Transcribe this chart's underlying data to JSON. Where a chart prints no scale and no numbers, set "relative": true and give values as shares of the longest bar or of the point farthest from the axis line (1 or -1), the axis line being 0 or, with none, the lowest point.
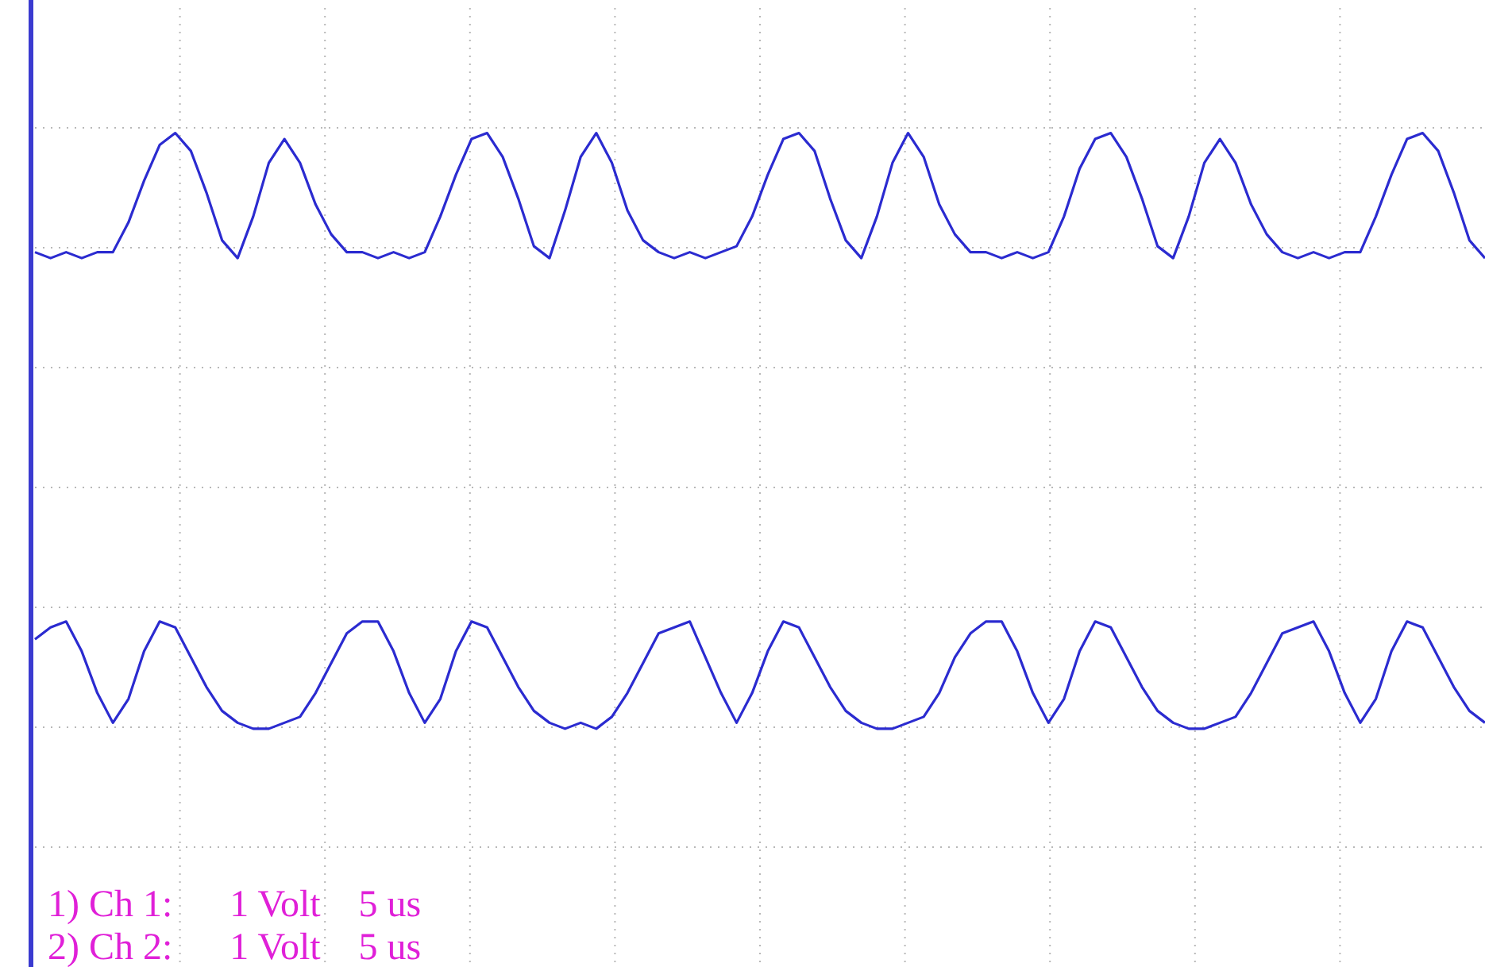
{
  "chart_data": {
    "type": "line",
    "relative": true,
    "grid": true,
    "legend": false,
    "marker": "none",
    "line_style": "solid",
    "categories": [
      null,
      null,
      null,
      null,
      null,
      null,
      null,
      null,
      null,
      null,
      null,
      null,
      null,
      null,
      null,
      null,
      null,
      null,
      null,
      null,
      null,
      null,
      null,
      null,
      null,
      null,
      null,
      null,
      null,
      null,
      null,
      null,
      null,
      null,
      null,
      null,
      null,
      null,
      null,
      null,
      null,
      null,
      null,
      null,
      null,
      null,
      null,
      null,
      null,
      null,
      null,
      null,
      null,
      null,
      null,
      null,
      null,
      null,
      null,
      null,
      null,
      null,
      null,
      null,
      null,
      null,
      null,
      null,
      null,
      null,
      null,
      null,
      null,
      null,
      null,
      null,
      null,
      null,
      null,
      null,
      null,
      null,
      null,
      null,
      null,
      null,
      null,
      null,
      null,
      null,
      null,
      null,
      null,
      null
    ],
    "series": [
      {
        "color": "#2b2bd0",
        "values": [
          0.8,
          0.79,
          0.8,
          0.79,
          0.8,
          0.8,
          0.85,
          0.92,
          0.98,
          1.0,
          0.97,
          0.9,
          0.82,
          0.79,
          0.86,
          0.95,
          0.99,
          0.95,
          0.88,
          0.83,
          0.8,
          0.8,
          0.79,
          0.8,
          0.79,
          0.8,
          0.86,
          0.93,
          0.99,
          1.0,
          0.96,
          0.89,
          0.81,
          0.79,
          0.87,
          0.96,
          1.0,
          0.95,
          0.87,
          0.82,
          0.8,
          0.79,
          0.8,
          0.79,
          0.8,
          0.81,
          0.86,
          0.93,
          0.99,
          1.0,
          0.97,
          0.89,
          0.82,
          0.79,
          0.86,
          0.95,
          1.0,
          0.96,
          0.88,
          0.83,
          0.8,
          0.8,
          0.79,
          0.8,
          0.79,
          0.8,
          0.86,
          0.94,
          0.99,
          1.0,
          0.96,
          0.89,
          0.81,
          0.79,
          0.86,
          0.95,
          0.99,
          0.95,
          0.88,
          0.83,
          0.8,
          0.79,
          0.8,
          0.79,
          0.8,
          0.8,
          0.86,
          0.93,
          0.99,
          1.0,
          0.97,
          0.9,
          0.82,
          0.79
        ]
      },
      {
        "color": "#2b2bd0",
        "values": [
          0.15,
          0.17,
          0.18,
          0.13,
          0.06,
          0.01,
          0.05,
          0.13,
          0.18,
          0.17,
          0.12,
          0.07,
          0.03,
          0.01,
          0.0,
          0.0,
          0.01,
          0.02,
          0.06,
          0.11,
          0.16,
          0.18,
          0.18,
          0.13,
          0.06,
          0.01,
          0.05,
          0.13,
          0.18,
          0.17,
          0.12,
          0.07,
          0.03,
          0.01,
          0.0,
          0.01,
          0.0,
          0.02,
          0.06,
          0.11,
          0.16,
          0.17,
          0.18,
          0.12,
          0.06,
          0.01,
          0.06,
          0.13,
          0.18,
          0.17,
          0.12,
          0.07,
          0.03,
          0.01,
          0.0,
          0.0,
          0.01,
          0.02,
          0.06,
          0.12,
          0.16,
          0.18,
          0.18,
          0.13,
          0.06,
          0.01,
          0.05,
          0.13,
          0.18,
          0.17,
          0.12,
          0.07,
          0.03,
          0.01,
          0.0,
          0.0,
          0.01,
          0.02,
          0.06,
          0.11,
          0.16,
          0.17,
          0.18,
          0.13,
          0.06,
          0.01,
          0.05,
          0.13,
          0.18,
          0.17,
          0.12,
          0.07,
          0.03,
          0.01
        ]
      }
    ],
    "annotations": [
      "1) Ch 1:   1 Volt  5 us",
      "2) Ch 2:   1 Volt  5 us"
    ]
  }
}
